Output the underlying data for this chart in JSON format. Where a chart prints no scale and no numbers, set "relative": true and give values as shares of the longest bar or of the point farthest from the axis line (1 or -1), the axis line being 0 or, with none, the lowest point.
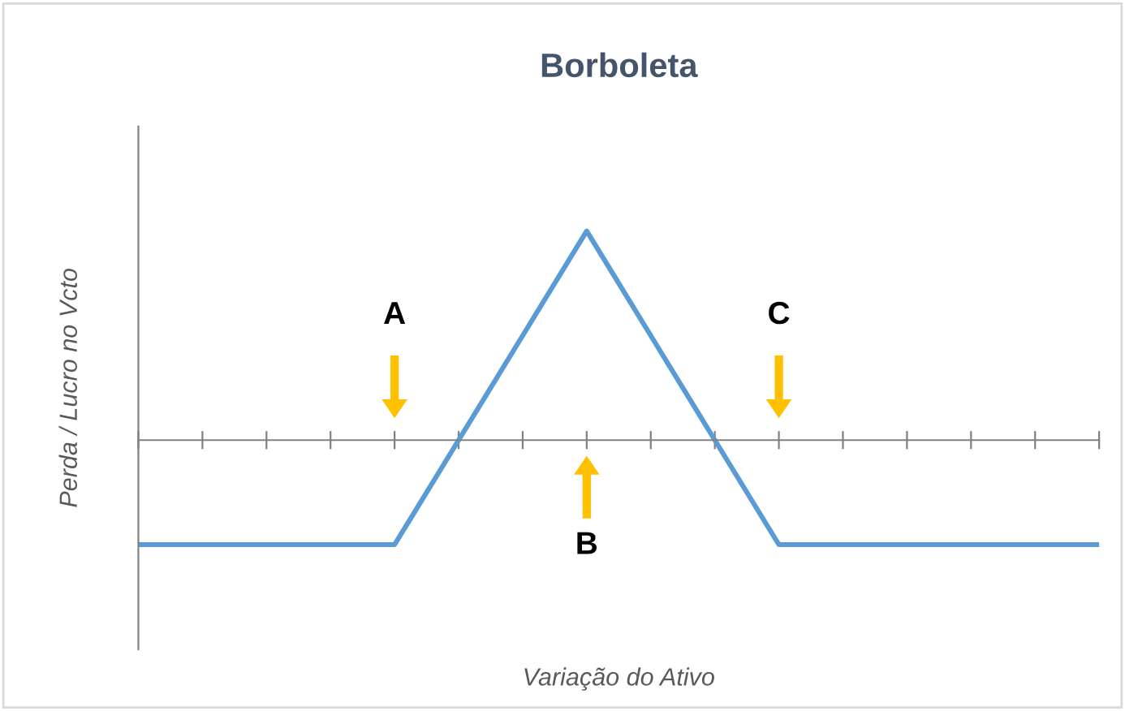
{
  "chart_data": {
    "type": "line",
    "title": "Borboleta",
    "xlabel": "Variação do Ativo",
    "ylabel": "Perda / Lucro no Vcto",
    "relative": true,
    "categories": [
      null,
      null,
      null,
      null,
      null,
      null,
      null,
      null,
      null,
      null,
      null,
      null,
      null,
      null,
      null,
      null
    ],
    "series": [
      {
        "color": "#5b9bd5",
        "values": [
          -0.5,
          -0.5,
          -0.5,
          -0.5,
          -0.5,
          0,
          0.5,
          1,
          0.5,
          0,
          -0.5,
          -0.5,
          -0.5,
          -0.5,
          -0.5,
          -0.5
        ]
      }
    ],
    "annotations": [
      "A",
      "B",
      "C"
    ],
    "grid": false,
    "legend": false,
    "marker": "none",
    "line_style": "solid"
  }
}
